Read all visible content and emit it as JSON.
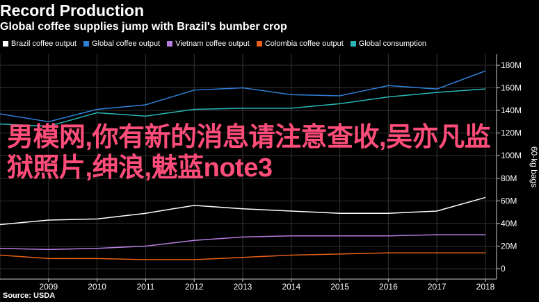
{
  "header": {
    "title": "Record Production",
    "subtitle": "Global coffee supplies jump with Brazil's bumber crop"
  },
  "overlay_text": "男模网,你有新的消息请注意查收,吴亦凡监狱照片,绅浪,魅蓝note3",
  "source": "Source: USDA",
  "chart_data": {
    "type": "line",
    "title": "Record Production",
    "subtitle": "Global coffee supplies jump with Brazil's bumber crop",
    "ylabel": "60-kg bags",
    "ylim": [
      0,
      180
    ],
    "y_ticks": [
      0,
      20,
      40,
      60,
      80,
      100,
      120,
      140,
      160,
      180
    ],
    "y_tick_labels": [
      "0",
      "20M",
      "40M",
      "60M",
      "80M",
      "100M",
      "120M",
      "140M",
      "160M",
      "180M"
    ],
    "x": [
      2008,
      2009,
      2010,
      2011,
      2012,
      2013,
      2014,
      2015,
      2016,
      2017,
      2018
    ],
    "x_tick_labels": [
      "2009",
      "2010",
      "2011",
      "2012",
      "2013",
      "2014",
      "2015",
      "2016",
      "2017",
      "2018"
    ],
    "legend_position": "top",
    "grid": true,
    "series": [
      {
        "name": "Brazil coffee output",
        "color": "#ffffff",
        "values": [
          39,
          43,
          44,
          49,
          56,
          53,
          51,
          49,
          49,
          51,
          63
        ]
      },
      {
        "name": "Global coffee output",
        "color": "#2f7fd6",
        "values": [
          137,
          130,
          141,
          145,
          158,
          160,
          154,
          153,
          162,
          159,
          175
        ]
      },
      {
        "name": "Vietnam coffee output",
        "color": "#b77de0",
        "values": [
          18,
          17,
          18,
          20,
          25,
          28,
          29,
          29,
          29,
          30,
          30
        ]
      },
      {
        "name": "Colombia coffee output",
        "color": "#e8601c",
        "values": [
          12,
          9,
          9,
          8,
          8,
          10,
          12,
          13,
          14,
          14,
          14
        ]
      },
      {
        "name": "Global consumption",
        "color": "#2ab7b7",
        "values": [
          128,
          126,
          138,
          135,
          141,
          142,
          142,
          146,
          152,
          156,
          159
        ]
      }
    ]
  }
}
